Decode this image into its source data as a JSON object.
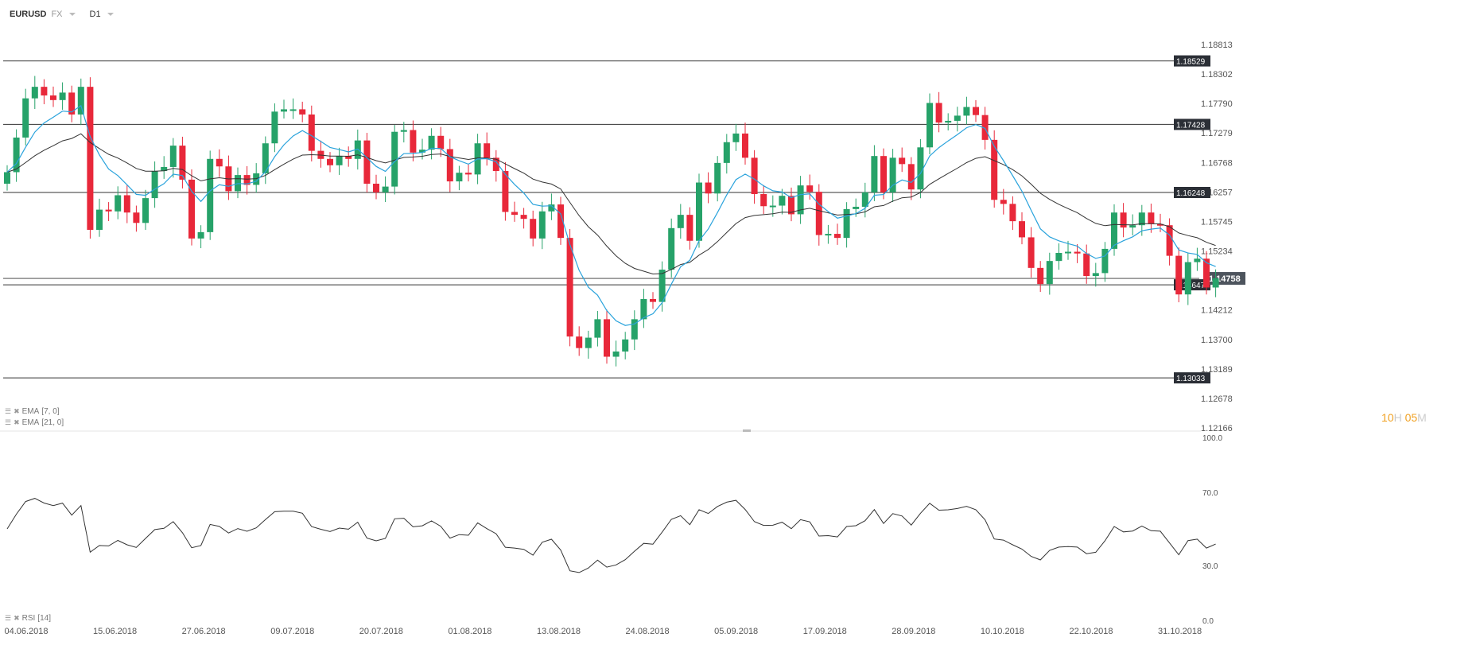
{
  "header": {
    "symbol": "EURUSD",
    "market": "FX",
    "timeframe": "D1"
  },
  "indicators": {
    "ema1": "EMA",
    "ema1_params": "[7, 0]",
    "ema2": "EMA",
    "ema2_params": "[21, 0]",
    "rsi": "RSI",
    "rsi_params": "[14]"
  },
  "countdown": {
    "hours": "10",
    "h_unit": "H",
    "minutes": "05",
    "m_unit": "M"
  },
  "colors": {
    "up": "#26a269",
    "down": "#e8283a",
    "ema7": "#2aa3dc",
    "ema21": "#333333",
    "level": "#333333",
    "price_tag": "#2b2f36"
  },
  "chart_data": {
    "type": "candlestick",
    "price_axis": {
      "ylim": [
        1.12166,
        1.18813
      ],
      "ticks": [
        "1.18813",
        "1.18302",
        "1.17790",
        "1.17279",
        "1.16768",
        "1.16257",
        "1.15745",
        "1.15234",
        "1.14212",
        "1.13700",
        "1.13189",
        "1.12678",
        "1.12166"
      ]
    },
    "levels": [
      "1.18529",
      "1.17428",
      "1.16248",
      "1.14647",
      "1.13033"
    ],
    "current_price": "1.14758",
    "x_labels": [
      "04.06.2018",
      "15.06.2018",
      "27.06.2018",
      "09.07.2018",
      "20.07.2018",
      "01.08.2018",
      "13.08.2018",
      "24.08.2018",
      "05.09.2018",
      "17.09.2018",
      "28.09.2018",
      "10.10.2018",
      "22.10.2018",
      "31.10.2018"
    ],
    "rsi_axis": {
      "ylim": [
        0,
        100
      ],
      "ticks": [
        "100.0",
        "70.0",
        "30.0",
        "0.0"
      ]
    },
    "closes": [
      1.166,
      1.172,
      1.1788,
      1.1808,
      1.1793,
      1.1785,
      1.1798,
      1.176,
      1.1808,
      1.156,
      1.1595,
      1.1592,
      1.162,
      1.159,
      1.1572,
      1.1615,
      1.1662,
      1.1669,
      1.1706,
      1.1647,
      1.1545,
      1.1556,
      1.1683,
      1.167,
      1.1627,
      1.1655,
      1.1638,
      1.1658,
      1.171,
      1.1765,
      1.1769,
      1.1769,
      1.176,
      1.1697,
      1.1683,
      1.1672,
      1.1688,
      1.1683,
      1.1715,
      1.164,
      1.1625,
      1.1635,
      1.173,
      1.1733,
      1.1694,
      1.1699,
      1.1723,
      1.17,
      1.1644,
      1.1659,
      1.1656,
      1.171,
      1.1685,
      1.1662,
      1.1591,
      1.1586,
      1.1579,
      1.1545,
      1.1592,
      1.1604,
      1.1546,
      1.1375,
      1.1355,
      1.1373,
      1.1405,
      1.134,
      1.1349,
      1.137,
      1.1405,
      1.144,
      1.1435,
      1.1491,
      1.1563,
      1.1586,
      1.1541,
      1.1642,
      1.1623,
      1.1676,
      1.1712,
      1.1727,
      1.1685,
      1.1622,
      1.1601,
      1.1602,
      1.1619,
      1.1587,
      1.1637,
      1.1626,
      1.1551,
      1.1553,
      1.1546,
      1.1596,
      1.16,
      1.1625,
      1.1688,
      1.1625,
      1.1685,
      1.1674,
      1.163,
      1.1703,
      1.178,
      1.1746,
      1.1749,
      1.1758,
      1.1773,
      1.1759,
      1.1716,
      1.1612,
      1.1605,
      1.1575,
      1.1547,
      1.1494,
      1.1466,
      1.1506,
      1.152,
      1.1522,
      1.1519,
      1.148,
      1.1485,
      1.1527,
      1.159,
      1.1564,
      1.1568,
      1.159,
      1.157,
      1.1568,
      1.1515,
      1.1448,
      1.1504,
      1.151,
      1.146,
      1.1476
    ]
  }
}
